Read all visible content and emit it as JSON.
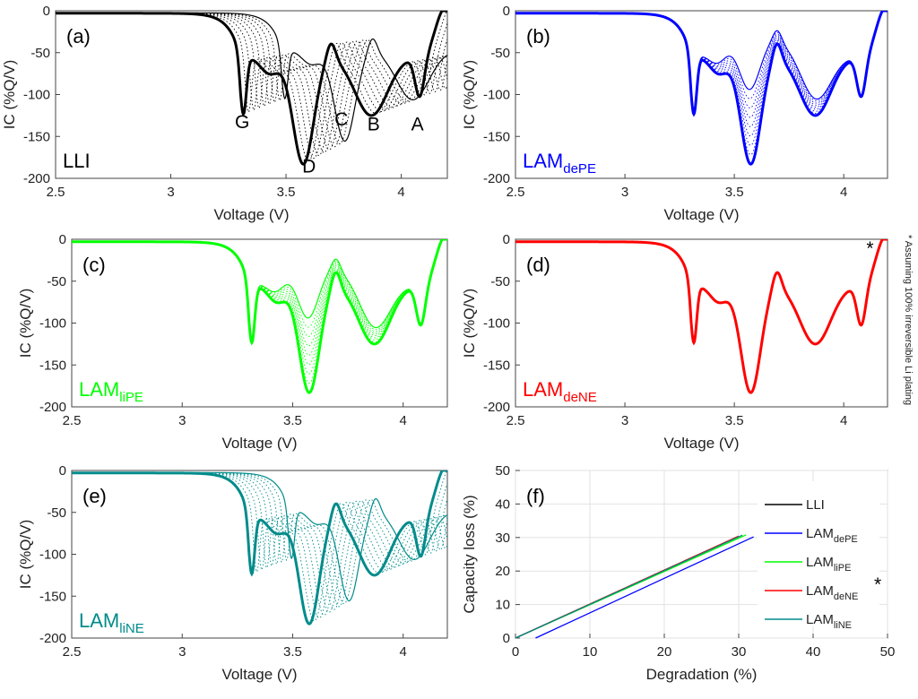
{
  "chart_data": [
    {
      "type": "line",
      "panel_label": "(a)",
      "series_label": "LLI",
      "series_label_sub": "",
      "color": "#000000",
      "xlabel": "Voltage (V)",
      "ylabel": "IC (%Q/V)",
      "xlim": [
        2.5,
        4.2
      ],
      "ylim": [
        -200,
        0
      ],
      "xticks": [
        2.5,
        3,
        3.5,
        4
      ],
      "xtick_labels": [
        "2.5",
        "3",
        "3.5",
        "4"
      ],
      "yticks": [
        0,
        -50,
        -100,
        -150,
        -200
      ],
      "ytick_labels": [
        "0",
        "-50",
        "-100",
        "-150",
        "-200"
      ],
      "mode": "shift",
      "peak_labels": [
        {
          "text": "G",
          "x": 3.31,
          "y": -140
        },
        {
          "text": "D",
          "x": 3.6,
          "y": -193
        },
        {
          "text": "C",
          "x": 3.74,
          "y": -137
        },
        {
          "text": "B",
          "x": 3.88,
          "y": -143
        },
        {
          "text": "A",
          "x": 4.07,
          "y": -143
        }
      ],
      "star": false
    },
    {
      "type": "line",
      "panel_label": "(b)",
      "series_label": "LAM",
      "series_label_sub": "dePE",
      "color": "#0000ff",
      "xlabel": "Voltage (V)",
      "ylabel": "IC (%Q/V)",
      "xlim": [
        2.5,
        4.2
      ],
      "ylim": [
        -200,
        0
      ],
      "xticks": [
        2.5,
        3,
        3.5,
        4
      ],
      "xtick_labels": [
        "2.5",
        "3",
        "3.5",
        "4"
      ],
      "yticks": [
        0,
        -50,
        -100,
        -150,
        -200
      ],
      "ytick_labels": [
        "0",
        "-50",
        "-100",
        "-150",
        "-200"
      ],
      "mode": "scale",
      "peak_labels": [],
      "star": false
    },
    {
      "type": "line",
      "panel_label": "(c)",
      "series_label": "LAM",
      "series_label_sub": "liPE",
      "color": "#00ff00",
      "xlabel": "Voltage (V)",
      "ylabel": "IC (%Q/V)",
      "xlim": [
        2.5,
        4.2
      ],
      "ylim": [
        -200,
        0
      ],
      "xticks": [
        2.5,
        3,
        3.5,
        4
      ],
      "xtick_labels": [
        "2.5",
        "3",
        "3.5",
        "4"
      ],
      "yticks": [
        0,
        -50,
        -100,
        -150,
        -200
      ],
      "ytick_labels": [
        "0",
        "-50",
        "-100",
        "-150",
        "-200"
      ],
      "mode": "scale",
      "peak_labels": [],
      "star": false
    },
    {
      "type": "line",
      "panel_label": "(d)",
      "series_label": "LAM",
      "series_label_sub": "deNE",
      "color": "#ff0000",
      "xlabel": "Voltage (V)",
      "ylabel": "IC (%Q/V)",
      "xlim": [
        2.5,
        4.2
      ],
      "ylim": [
        -200,
        0
      ],
      "xticks": [
        2.5,
        3,
        3.5,
        4
      ],
      "xtick_labels": [
        "2.5",
        "3",
        "3.5",
        "4"
      ],
      "yticks": [
        0,
        -50,
        -100,
        -150,
        -200
      ],
      "ytick_labels": [
        "0",
        "-50",
        "-100",
        "-150",
        "-200"
      ],
      "mode": "cutoff",
      "peak_labels": [],
      "star": true
    },
    {
      "type": "line",
      "panel_label": "(e)",
      "series_label": "LAM",
      "series_label_sub": "liNE",
      "color": "#008b8b",
      "xlabel": "Voltage (V)",
      "ylabel": "IC (%Q/V)",
      "xlim": [
        2.5,
        4.2
      ],
      "ylim": [
        -200,
        0
      ],
      "xticks": [
        2.5,
        3,
        3.5,
        4
      ],
      "xtick_labels": [
        "2.5",
        "3",
        "3.5",
        "4"
      ],
      "yticks": [
        0,
        -50,
        -100,
        -150,
        -200
      ],
      "ytick_labels": [
        "0",
        "-50",
        "-100",
        "-150",
        "-200"
      ],
      "mode": "shift",
      "peak_labels": [],
      "star": false
    },
    {
      "type": "line",
      "panel_label": "(f)",
      "xlabel": "Degradation (%)",
      "ylabel": "Capacity loss (%)",
      "xlim": [
        0,
        50
      ],
      "ylim": [
        0,
        50
      ],
      "xticks": [
        0,
        10,
        20,
        30,
        40,
        50
      ],
      "xtick_labels": [
        "0",
        "10",
        "20",
        "30",
        "40",
        "50"
      ],
      "yticks": [
        0,
        10,
        20,
        30,
        40,
        50
      ],
      "ytick_labels": [
        "0",
        "10",
        "20",
        "30",
        "40",
        "50"
      ],
      "grid": true,
      "series": [
        {
          "name": "LLI",
          "sub": "",
          "color": "#000000",
          "x": [
            0,
            30
          ],
          "y": [
            0,
            30.4
          ]
        },
        {
          "name": "LAM",
          "sub": "dePE",
          "color": "#0000ff",
          "x": [
            2.7,
            32
          ],
          "y": [
            0,
            30.2
          ]
        },
        {
          "name": "LAM",
          "sub": "liPE",
          "color": "#00ff00",
          "x": [
            0,
            31
          ],
          "y": [
            0,
            30.8
          ]
        },
        {
          "name": "LAM",
          "sub": "deNE",
          "color": "#ff0000",
          "x": [
            0,
            30
          ],
          "y": [
            0,
            30.4
          ],
          "star": true
        },
        {
          "name": "LAM",
          "sub": "liNE",
          "color": "#008b8b",
          "x": [
            0,
            30.5
          ],
          "y": [
            0,
            30.7
          ]
        }
      ]
    }
  ],
  "footnote": "* Assuming 100% irreversible Li plating",
  "star_symbol": "*"
}
